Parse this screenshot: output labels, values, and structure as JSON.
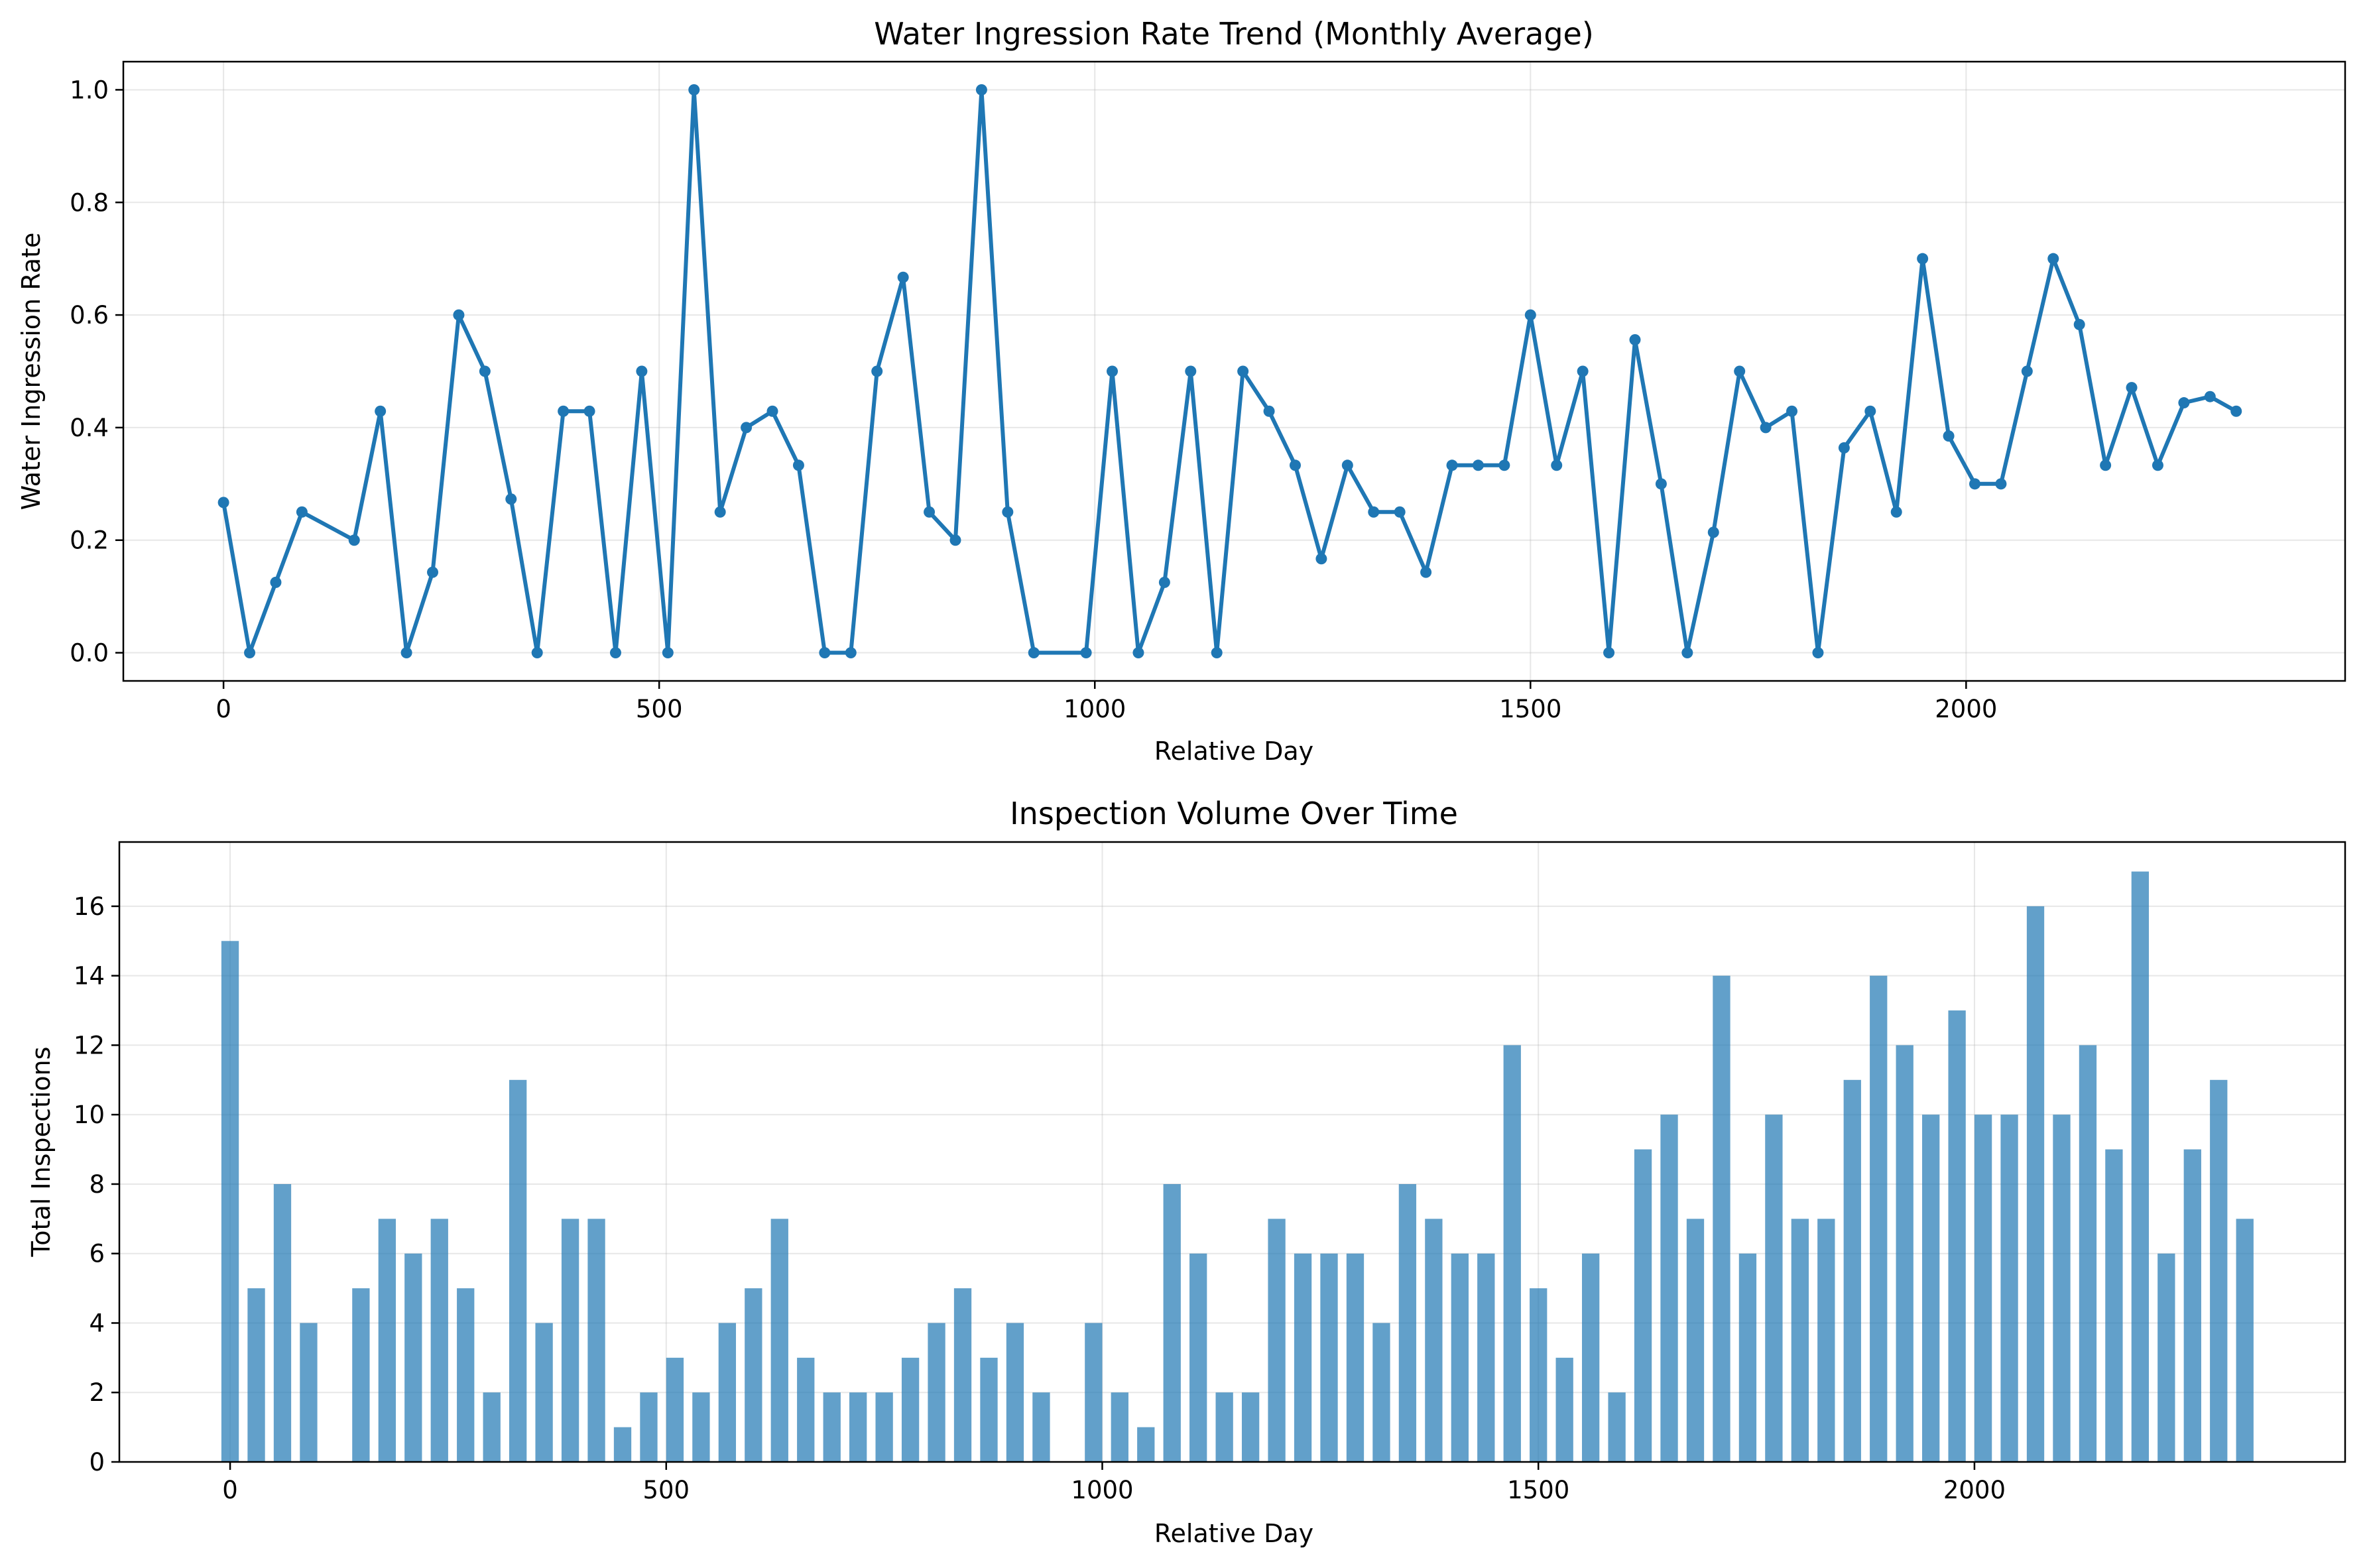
{
  "chart_data": [
    {
      "type": "line",
      "title": "Water Ingression Rate Trend (Monthly Average)",
      "xlabel": "Relative Day",
      "ylabel": "Water Ingression Rate",
      "xlim": [
        -115,
        2435
      ],
      "ylim": [
        -0.05,
        1.05
      ],
      "xticks": [
        0,
        500,
        1000,
        1500,
        2000
      ],
      "yticks": [
        0.0,
        0.2,
        0.4,
        0.6,
        0.8,
        1.0
      ],
      "ytick_labels": [
        "0.0",
        "0.2",
        "0.4",
        "0.6",
        "0.8",
        "1.0"
      ],
      "grid": true,
      "color": "#1f77b4",
      "marker": "circle",
      "x": [
        0,
        30,
        60,
        90,
        150,
        180,
        210,
        240,
        270,
        300,
        330,
        360,
        390,
        420,
        450,
        480,
        510,
        540,
        570,
        600,
        630,
        660,
        690,
        720,
        750,
        780,
        810,
        840,
        870,
        900,
        930,
        990,
        1020,
        1050,
        1080,
        1110,
        1140,
        1170,
        1200,
        1230,
        1260,
        1290,
        1320,
        1350,
        1380,
        1410,
        1440,
        1470,
        1500,
        1530,
        1560,
        1590,
        1620,
        1650,
        1680,
        1710,
        1740,
        1770,
        1800,
        1830,
        1860,
        1890,
        1920,
        1950,
        1980,
        2010,
        2040,
        2070,
        2100,
        2130,
        2160,
        2190,
        2220,
        2250,
        2280,
        2310
      ],
      "y": [
        0.267,
        0.0,
        0.125,
        0.25,
        0.2,
        0.429,
        0.0,
        0.143,
        0.6,
        0.5,
        0.273,
        0.0,
        0.429,
        0.429,
        0.0,
        0.5,
        0.0,
        1.0,
        0.25,
        0.4,
        0.429,
        0.333,
        0.0,
        0.0,
        0.5,
        0.667,
        0.25,
        0.2,
        1.0,
        0.25,
        0.0,
        0.0,
        0.5,
        0.0,
        0.125,
        0.5,
        0.0,
        0.5,
        0.429,
        0.333,
        0.167,
        0.333,
        0.25,
        0.25,
        0.143,
        0.333,
        0.333,
        0.333,
        0.6,
        0.333,
        0.5,
        0.0,
        0.556,
        0.3,
        0.0,
        0.214,
        0.5,
        0.4,
        0.429,
        0.0,
        0.364,
        0.429,
        0.25,
        0.7,
        0.385,
        0.3,
        0.3,
        0.5,
        0.7,
        0.583,
        0.333,
        0.471,
        0.333,
        0.444,
        0.455,
        0.429
      ]
    },
    {
      "type": "bar",
      "title": "Inspection Volume Over Time",
      "xlabel": "Relative Day",
      "ylabel": "Total Inspections",
      "xlim": [
        -127,
        2425
      ],
      "ylim": [
        0,
        17.85
      ],
      "xticks": [
        0,
        500,
        1000,
        1500,
        2000
      ],
      "yticks": [
        0,
        2,
        4,
        6,
        8,
        10,
        12,
        14,
        16
      ],
      "grid": true,
      "color": "#1f77b4",
      "bar_width_days": 20,
      "x": [
        0,
        30,
        60,
        90,
        150,
        180,
        210,
        240,
        270,
        300,
        330,
        360,
        390,
        420,
        450,
        480,
        510,
        540,
        570,
        600,
        630,
        660,
        690,
        720,
        750,
        780,
        810,
        840,
        870,
        900,
        930,
        990,
        1020,
        1050,
        1080,
        1110,
        1140,
        1170,
        1200,
        1230,
        1260,
        1290,
        1320,
        1350,
        1380,
        1410,
        1440,
        1470,
        1500,
        1530,
        1560,
        1590,
        1620,
        1650,
        1680,
        1710,
        1740,
        1770,
        1800,
        1830,
        1860,
        1890,
        1920,
        1950,
        1980,
        2010,
        2040,
        2070,
        2100,
        2130,
        2160,
        2190,
        2220,
        2250,
        2280,
        2310
      ],
      "values": [
        15,
        5,
        8,
        4,
        5,
        7,
        6,
        7,
        5,
        2,
        11,
        4,
        7,
        7,
        1,
        2,
        3,
        2,
        4,
        5,
        7,
        3,
        2,
        2,
        2,
        3,
        4,
        5,
        3,
        4,
        2,
        4,
        2,
        1,
        8,
        6,
        2,
        2,
        7,
        6,
        6,
        6,
        4,
        8,
        7,
        6,
        6,
        12,
        5,
        3,
        6,
        2,
        9,
        10,
        7,
        14,
        6,
        10,
        7,
        7,
        11,
        14,
        12,
        10,
        13,
        10,
        10,
        16,
        10,
        12,
        9,
        17,
        6,
        9,
        11,
        7
      ]
    }
  ]
}
